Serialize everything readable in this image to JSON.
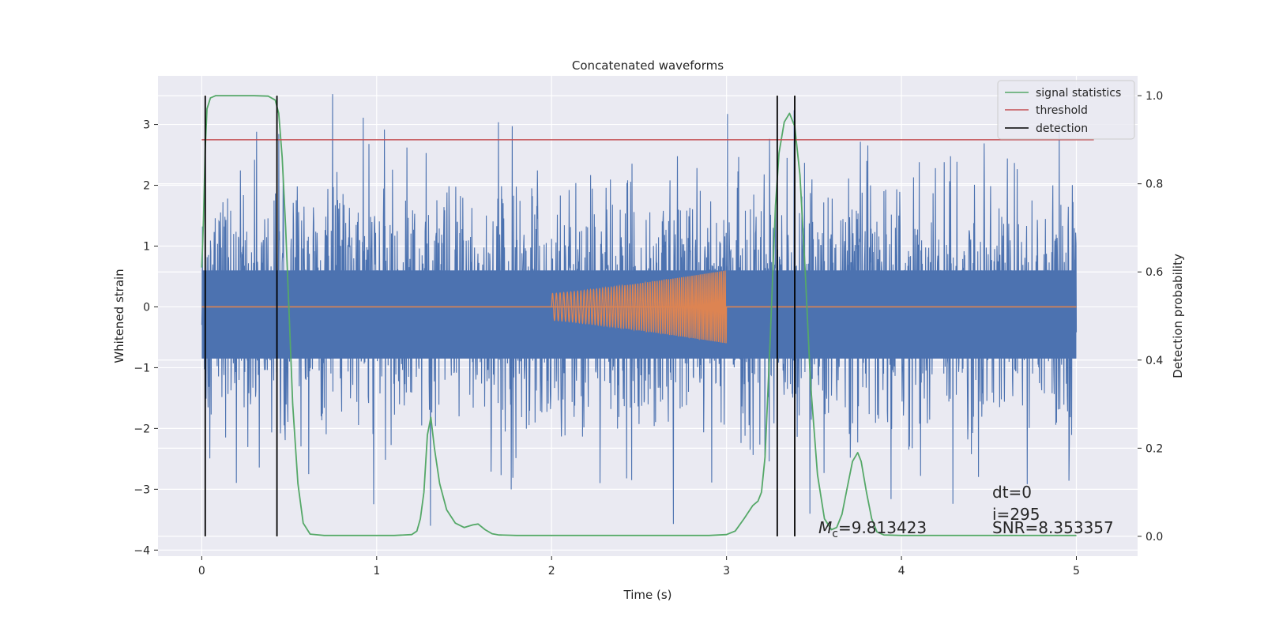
{
  "chart_data": {
    "type": "line",
    "title": "Concatenated waveforms",
    "xlabel": "Time (s)",
    "ylabel": "Whitened strain",
    "y2label": "Detection probability",
    "xlim": [
      -0.25,
      5.35
    ],
    "ylim": [
      -4.1,
      3.8
    ],
    "y2lim": [
      -0.045,
      1.045
    ],
    "xticks": [
      0,
      1,
      2,
      3,
      4,
      5
    ],
    "yticks": [
      -4,
      -3,
      -2,
      -1,
      0,
      1,
      2,
      3
    ],
    "y2ticks": [
      0.0,
      0.2,
      0.4,
      0.6,
      0.8,
      1.0
    ],
    "grid": true,
    "legend_position": "top-right",
    "colors": {
      "noise": "#4c72b0",
      "template": "#dd8452",
      "statistic": "#55a868",
      "threshold": "#c44e52",
      "detection": "#000000",
      "plot_bg": "#eaeaf2",
      "grid": "#ffffff"
    },
    "noise": {
      "x_range": [
        0,
        5
      ],
      "bulk_band": [
        -0.85,
        0.6
      ],
      "approx_extremes": [
        -3.6,
        3.5
      ]
    },
    "template": {
      "x_range": [
        2.0,
        3.0
      ],
      "amplitude_start": 0.22,
      "amplitude_end": 0.6,
      "baseline_range": [
        0,
        5
      ]
    },
    "threshold": {
      "x": [
        0,
        5.1
      ],
      "value": 0.9
    },
    "detections": [
      0.02,
      0.43,
      3.29,
      3.39
    ],
    "detection_y_range": [
      0.0,
      1.0
    ],
    "statistic": {
      "x": [
        0.0,
        0.01,
        0.02,
        0.03,
        0.05,
        0.08,
        0.1,
        0.2,
        0.3,
        0.38,
        0.42,
        0.44,
        0.46,
        0.48,
        0.5,
        0.52,
        0.55,
        0.58,
        0.62,
        0.7,
        0.9,
        1.1,
        1.2,
        1.23,
        1.25,
        1.27,
        1.29,
        1.31,
        1.33,
        1.36,
        1.4,
        1.45,
        1.5,
        1.55,
        1.58,
        1.62,
        1.66,
        1.7,
        1.8,
        2.0,
        2.5,
        2.9,
        3.0,
        3.05,
        3.1,
        3.15,
        3.18,
        3.2,
        3.22,
        3.25,
        3.28,
        3.3,
        3.33,
        3.36,
        3.39,
        3.42,
        3.45,
        3.48,
        3.52,
        3.56,
        3.6,
        3.63,
        3.66,
        3.69,
        3.72,
        3.75,
        3.77,
        3.8,
        3.83,
        3.86,
        3.9,
        4.0,
        4.5,
        5.0
      ],
      "y": [
        0.61,
        0.72,
        0.88,
        0.97,
        0.995,
        1.0,
        1.0,
        1.0,
        1.0,
        0.999,
        0.99,
        0.96,
        0.86,
        0.7,
        0.5,
        0.3,
        0.12,
        0.03,
        0.005,
        0.002,
        0.002,
        0.002,
        0.004,
        0.012,
        0.04,
        0.1,
        0.23,
        0.27,
        0.2,
        0.12,
        0.06,
        0.03,
        0.02,
        0.026,
        0.028,
        0.015,
        0.006,
        0.003,
        0.002,
        0.002,
        0.002,
        0.002,
        0.004,
        0.012,
        0.04,
        0.07,
        0.08,
        0.1,
        0.18,
        0.45,
        0.75,
        0.87,
        0.94,
        0.96,
        0.93,
        0.82,
        0.6,
        0.35,
        0.14,
        0.04,
        0.015,
        0.02,
        0.05,
        0.11,
        0.17,
        0.19,
        0.17,
        0.1,
        0.04,
        0.01,
        0.003,
        0.002,
        0.002,
        0.002
      ]
    },
    "legend": [
      {
        "label": "signal statistics",
        "color": "#55a868"
      },
      {
        "label": "threshold",
        "color": "#c44e52"
      },
      {
        "label": "detection",
        "color": "#000000"
      }
    ],
    "annotations": {
      "mc_symbol": "M",
      "mc_subscript": "c",
      "mc_value": "=9.813423",
      "dt": "dt=0",
      "i": "i=295",
      "snr": "SNR=8.353357"
    }
  }
}
